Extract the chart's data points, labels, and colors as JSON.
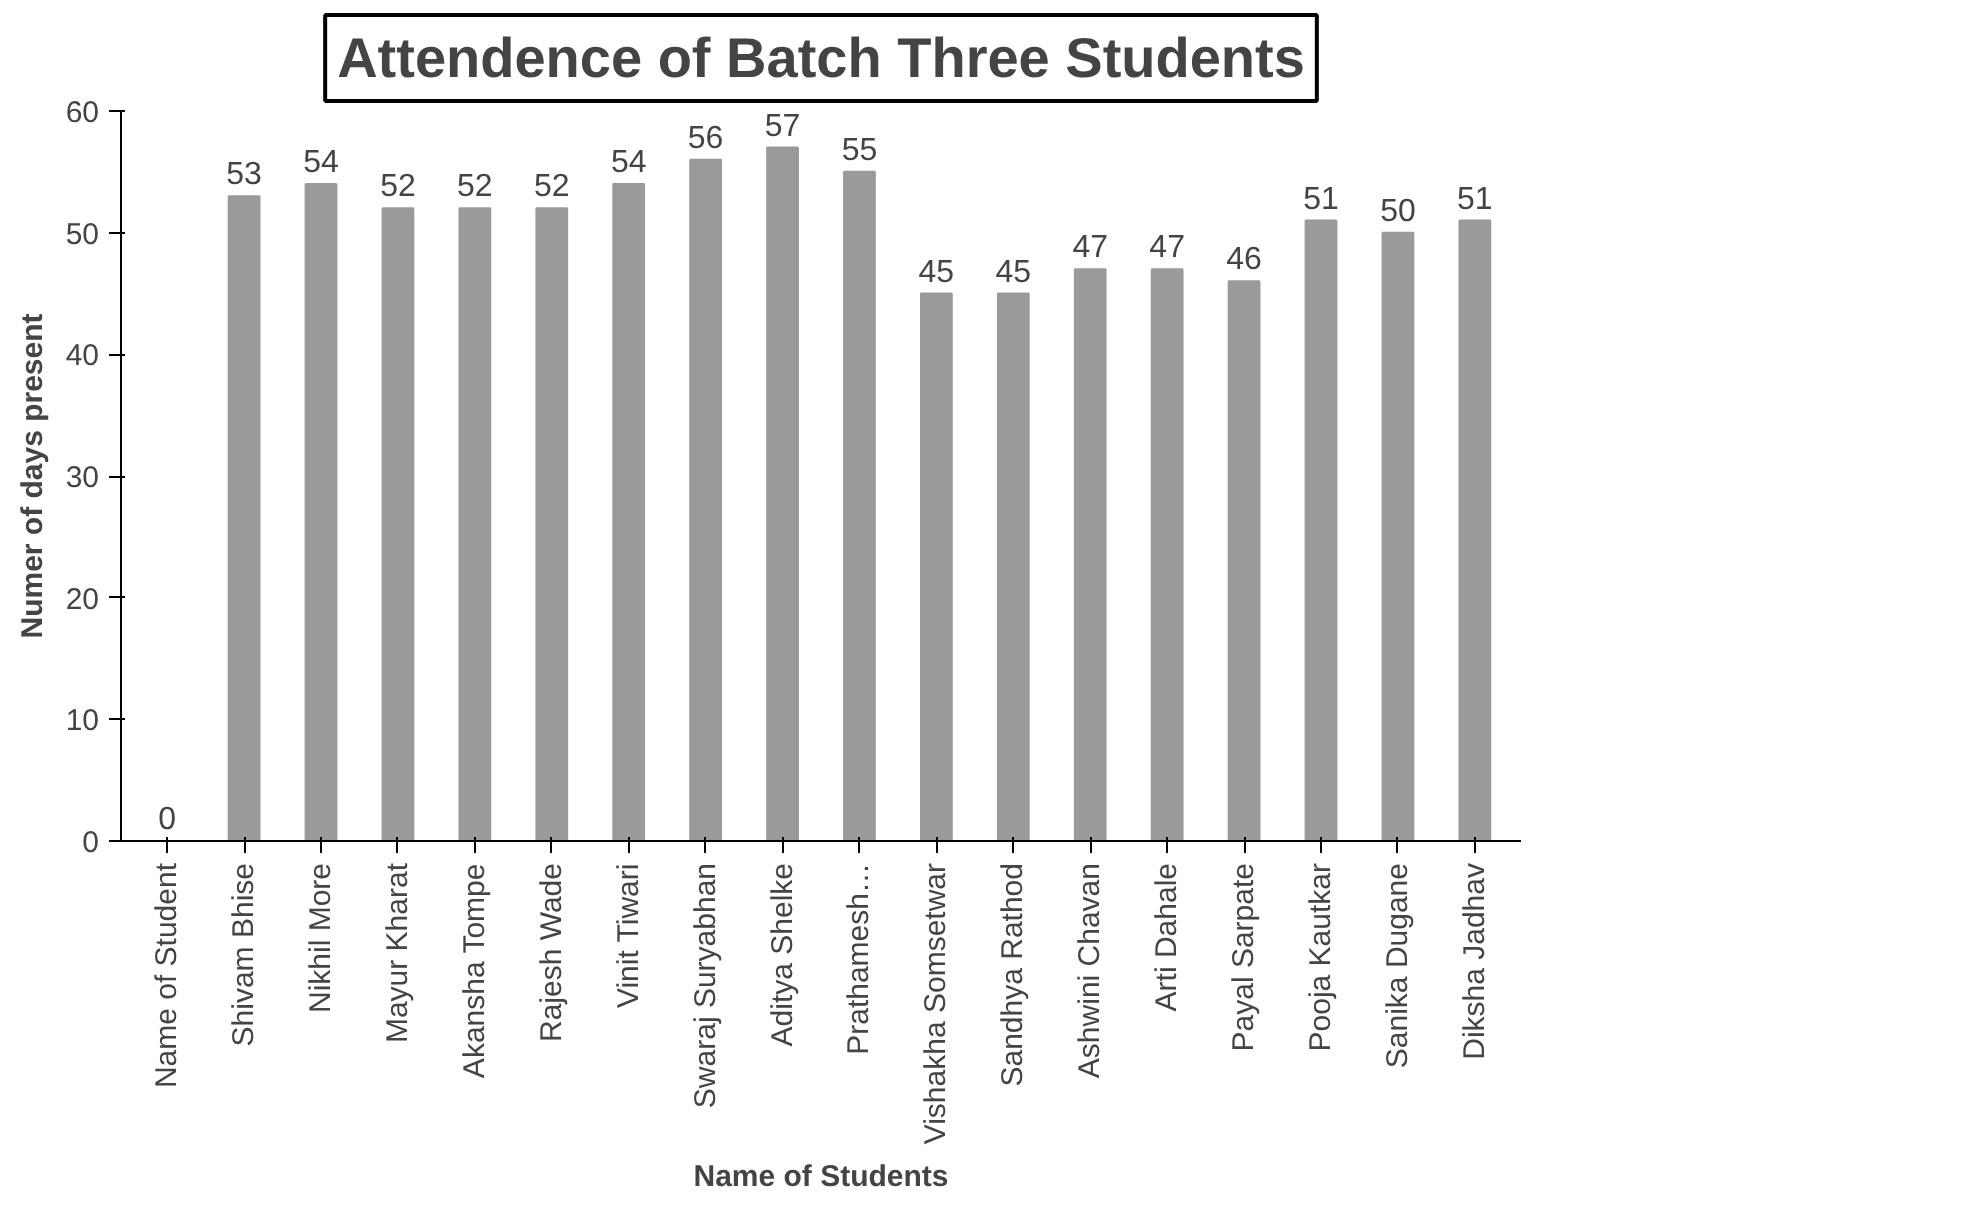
{
  "chart_data": {
    "type": "bar",
    "title": "Attendence of Batch Three Students",
    "xlabel": "Name of Students",
    "ylabel": "Numer of days present",
    "categories": [
      "Name of Student",
      "Shivam Bhise",
      "Nikhil More",
      "Mayur Kharat",
      "Akansha Tompe",
      "Rajesh Wade",
      "Vinit Tiwari",
      "Swaraj Suryabhan",
      "Aditya Shelke",
      "Prathamesh…",
      "Vishakha Somsetwar",
      "Sandhya Rathod",
      "Ashwini Chavan",
      "Arti Dahale",
      "Payal Sarpate",
      "Pooja Kautkar",
      "Sanika Dugane",
      "Diksha Jadhav"
    ],
    "values": [
      0,
      53,
      54,
      52,
      52,
      52,
      54,
      56,
      57,
      55,
      45,
      45,
      47,
      47,
      46,
      51,
      50,
      51
    ],
    "color": "#9a9a9a",
    "ylim": [
      0,
      60
    ],
    "yticks": [
      0,
      10,
      20,
      30,
      40,
      50,
      60
    ],
    "grid": false,
    "data_labels": true
  }
}
